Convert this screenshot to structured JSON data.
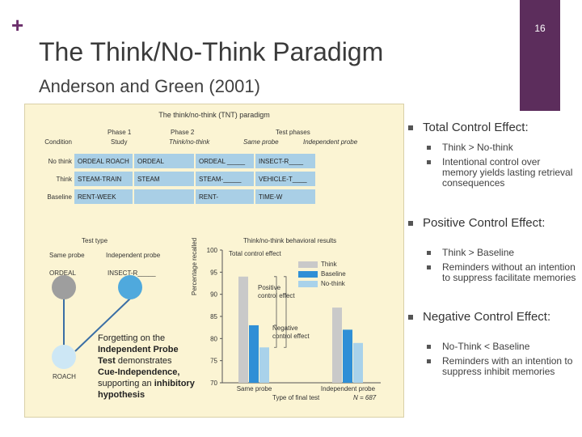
{
  "slide": {
    "plus": "+",
    "number": "16",
    "title": "The Think/No-Think Paradigm",
    "subtitle": "Anderson and Green (2001)"
  },
  "figure": {
    "title": "The think/no-think (TNT) paradigm",
    "table": {
      "headers": [
        "Phase 1",
        "Phase 2",
        "Test phases"
      ],
      "subheaders": [
        "Condition",
        "Study",
        "Think/no-think",
        "Same probe",
        "Independent probe"
      ],
      "rows": [
        {
          "condition": "No think",
          "cells": [
            "ORDEAL ROACH",
            "ORDEAL",
            "ORDEAL _____",
            "INSECT-R____"
          ]
        },
        {
          "condition": "Think",
          "cells": [
            "STEAM-TRAIN",
            "STEAM",
            "STEAM-_____",
            "VEHICLE-T____"
          ]
        },
        {
          "condition": "Baseline",
          "cells": [
            "RENT-WEEK",
            "",
            "RENT-",
            "TIME-W"
          ]
        }
      ]
    },
    "test_type": {
      "label": "Test type",
      "same_probe": "Same probe",
      "independent_probe": "Independent probe",
      "ordeal": "ORDEAL",
      "insect": "INSECT-R_____",
      "roach": "ROACH"
    },
    "chart_label": "Think/no-think behavioral results",
    "annotations": {
      "total": "Total control effect",
      "positive": "Positive control effect",
      "negative": "Negative control effect"
    },
    "overlay_text": {
      "line1": "Forgetting on the",
      "line2": "Independent Probe",
      "line3": "Test",
      "line3b": " demonstrates",
      "line4": "Cue-Independence,",
      "line5a": "supporting an ",
      "line5b": "inhibitory",
      "line6": "hypothesis"
    },
    "n_label": "N = 687"
  },
  "chart_data": {
    "type": "bar",
    "categories": [
      "Same probe",
      "Independent probe"
    ],
    "series": [
      {
        "name": "Think",
        "values": [
          94,
          87
        ]
      },
      {
        "name": "Baseline",
        "values": [
          83,
          82
        ]
      },
      {
        "name": "No-think",
        "values": [
          78,
          79
        ]
      }
    ],
    "xlabel": "Type of final test",
    "ylabel": "Percentage recalled",
    "ylim": [
      70,
      100
    ],
    "yticks": [
      70,
      75,
      80,
      85,
      90,
      95,
      100
    ],
    "colors": {
      "Think": "#c9c9c9",
      "Baseline": "#2f8fd6",
      "No-think": "#a9d2ea"
    }
  },
  "bullets": [
    {
      "title": "Total Control Effect:",
      "items": [
        "Think > No-think",
        "Intentional control over memory yields lasting retrieval consequences"
      ]
    },
    {
      "title": "Positive Control Effect:",
      "items": [
        "Think > Baseline",
        "Reminders without an intention to suppress facilitate memories"
      ]
    },
    {
      "title": "Negative Control Effect:",
      "items": [
        "No-Think < Baseline",
        "Reminders with an intention to suppress inhibit memories"
      ]
    }
  ],
  "colors": {
    "accent": "#5c2d5c",
    "figure_bg": "#fbf4d3",
    "table_cell": "#a9cfe6"
  }
}
